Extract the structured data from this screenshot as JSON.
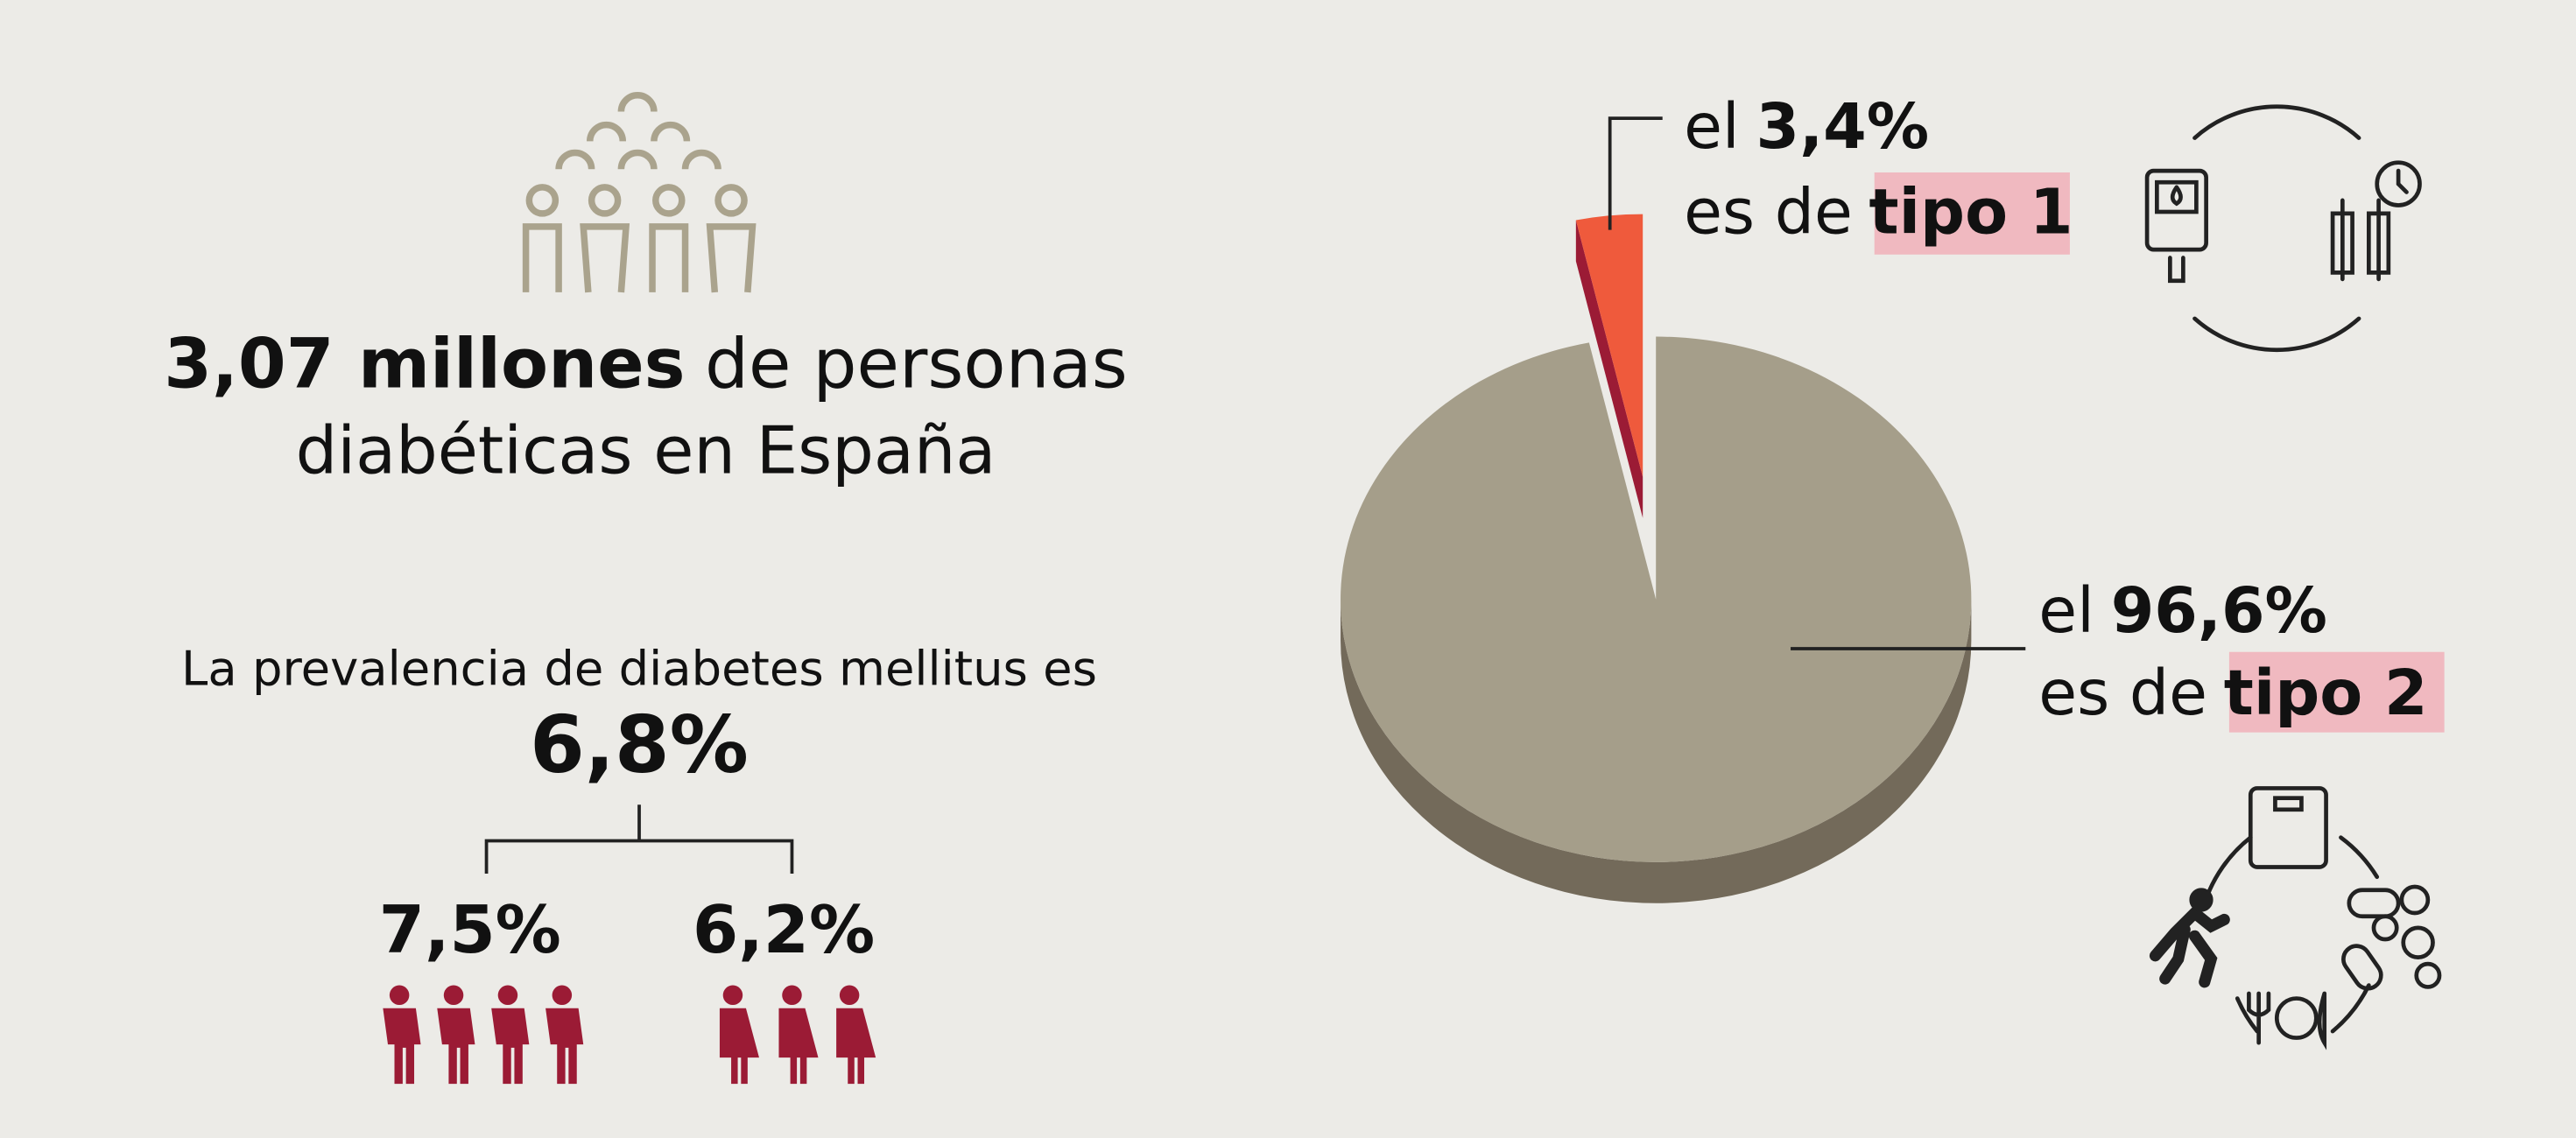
{
  "headline": {
    "bold": "3,07 millones",
    "rest": "de personas",
    "line2": "diabéticas en España"
  },
  "prevalence": {
    "text": "La prevalencia de diabetes mellitus es",
    "total": "6,8%",
    "men": "7,5%",
    "women": "6,2%"
  },
  "chart_data": {
    "type": "pie",
    "categories": [
      "tipo 2",
      "tipo 1"
    ],
    "values": [
      96.6,
      3.4
    ],
    "value_labels": [
      "96,6%",
      "3,4%"
    ],
    "colors": [
      "#a59e8a",
      "#ef5a3c"
    ],
    "prefix": "el",
    "middle": "es de"
  }
}
